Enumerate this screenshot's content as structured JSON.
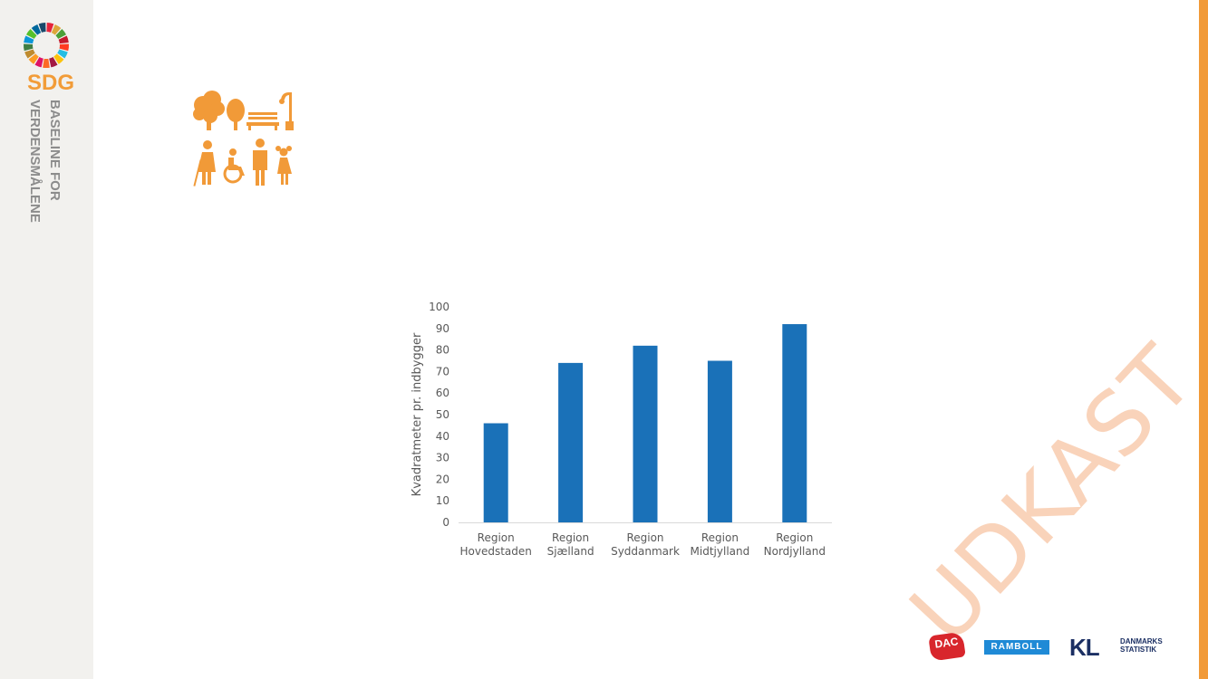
{
  "sidebar": {
    "brand": "SDG",
    "line1": "BASELINE FOR",
    "line2": "VERDENSMÅLENE"
  },
  "watermark": "UDKAST",
  "colors": {
    "accent": "#f19a38",
    "bar": "#1a71b8",
    "axis_text": "#595959"
  },
  "goal_icon": "sustainable-cities-icon",
  "logos": {
    "dac": "DAC",
    "ramboll": "RAMBOLL",
    "kl": "KL",
    "dst_line1": "DANMARKS",
    "dst_line2": "STATISTIK"
  },
  "chart_data": {
    "type": "bar",
    "title": "",
    "xlabel": "",
    "ylabel": "Kvadratmeter pr. indbygger",
    "ylim": [
      0,
      100
    ],
    "yticks": [
      0,
      10,
      20,
      30,
      40,
      50,
      60,
      70,
      80,
      90,
      100
    ],
    "grid": false,
    "legend": "none",
    "categories": [
      [
        "Region",
        "Hovedstaden"
      ],
      [
        "Region",
        "Sjælland"
      ],
      [
        "Region",
        "Syddanmark"
      ],
      [
        "Region",
        "Midtjylland"
      ],
      [
        "Region",
        "Nordjylland"
      ]
    ],
    "values": [
      46,
      74,
      82,
      75,
      92
    ]
  }
}
